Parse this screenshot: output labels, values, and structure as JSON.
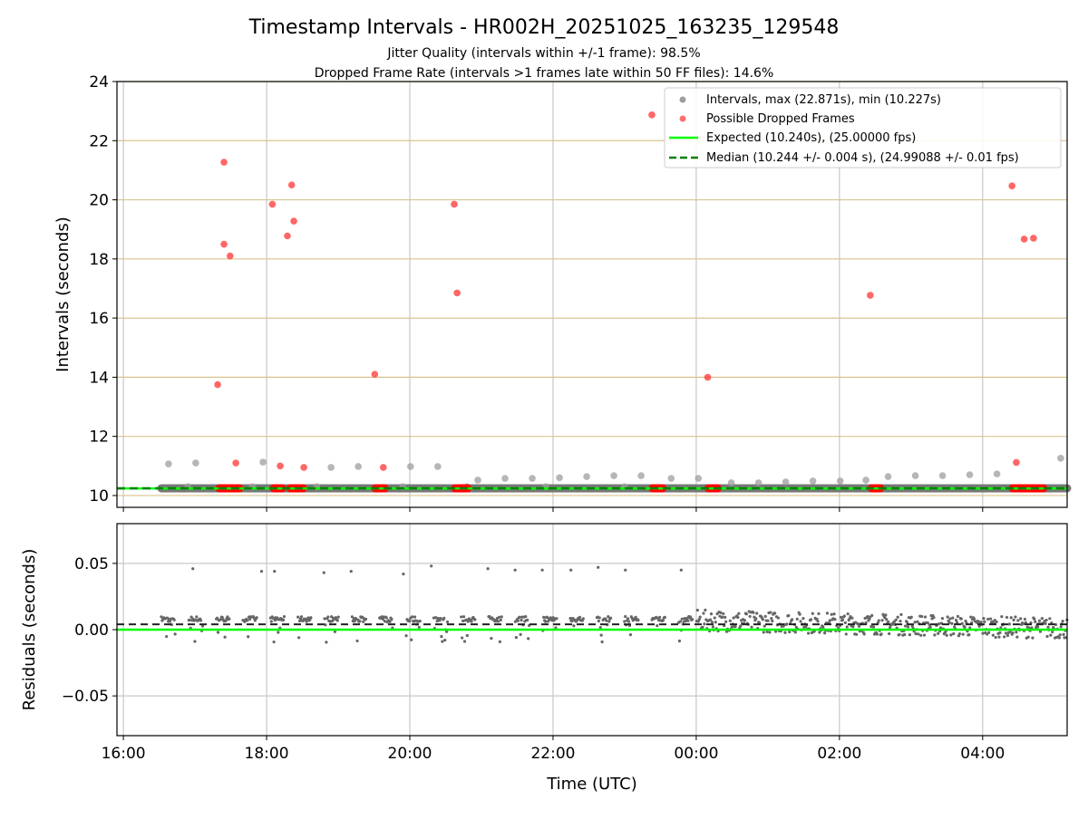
{
  "chart_data": [
    {
      "type": "scatter",
      "title": "Timestamp Intervals - HR002H_20251025_163235_129548",
      "subtitle_lines": [
        "Jitter Quality (intervals within +/-1 frame): 98.5%",
        "Dropped Frame Rate (intervals >1 frames late within 50 FF files): 14.6%"
      ],
      "ylabel": "Intervals (seconds)",
      "ylim": [
        9.6,
        24
      ],
      "yticks": [
        10,
        12,
        14,
        16,
        18,
        20,
        22,
        24
      ],
      "xlim_hours_from_1600": [
        -0.09,
        13.18
      ],
      "xticks_hours_from_1600": [
        0,
        2,
        4,
        6,
        8,
        10,
        12
      ],
      "grid": true,
      "legend_position": "top-right",
      "legend": [
        "Intervals, max (22.871s), min (10.227s)",
        "Possible Dropped Frames",
        "Expected (10.240s), (25.00000 fps)",
        "Median (10.244 +/- 0.004 s), (24.99088 +/- 0.01 fps)"
      ],
      "expected_interval": 10.24,
      "median_interval": 10.244,
      "regular_intervals_band": {
        "x_start": 0.53,
        "x_end": 13.18,
        "value": 10.244
      },
      "intervals": [
        [
          0.63,
          11.07
        ],
        [
          1.01,
          11.1
        ],
        [
          1.95,
          11.13
        ],
        [
          2.9,
          10.95
        ],
        [
          3.28,
          10.98
        ],
        [
          4.01,
          10.98
        ],
        [
          4.39,
          10.98
        ],
        [
          4.95,
          10.52
        ],
        [
          5.33,
          10.58
        ],
        [
          5.71,
          10.58
        ],
        [
          6.09,
          10.6
        ],
        [
          6.47,
          10.64
        ],
        [
          6.85,
          10.67
        ],
        [
          7.23,
          10.67
        ],
        [
          7.65,
          10.58
        ],
        [
          8.03,
          10.58
        ],
        [
          8.49,
          10.43
        ],
        [
          8.87,
          10.43
        ],
        [
          9.25,
          10.46
        ],
        [
          9.63,
          10.49
        ],
        [
          10.01,
          10.49
        ],
        [
          10.37,
          10.52
        ],
        [
          10.68,
          10.64
        ],
        [
          11.06,
          10.67
        ],
        [
          11.44,
          10.67
        ],
        [
          11.82,
          10.7
        ],
        [
          12.2,
          10.73
        ],
        [
          13.09,
          11.26
        ],
        [
          0.9,
          10.3
        ],
        [
          1.8,
          10.3
        ],
        [
          2.7,
          10.3
        ],
        [
          3.9,
          10.3
        ],
        [
          4.8,
          10.3
        ],
        [
          5.9,
          10.3
        ],
        [
          7.0,
          10.3
        ]
      ],
      "dropped_frames": [
        [
          1.316,
          13.75
        ],
        [
          1.405,
          21.27
        ],
        [
          1.405,
          18.5
        ],
        [
          1.49,
          18.1
        ],
        [
          1.57,
          11.1
        ],
        [
          2.08,
          19.85
        ],
        [
          2.19,
          11.0
        ],
        [
          2.29,
          18.78
        ],
        [
          2.35,
          20.5
        ],
        [
          2.38,
          19.28
        ],
        [
          2.52,
          10.95
        ],
        [
          3.51,
          14.1
        ],
        [
          3.63,
          10.95
        ],
        [
          4.62,
          19.85
        ],
        [
          4.66,
          16.85
        ],
        [
          7.38,
          22.871
        ],
        [
          8.16,
          14.0
        ],
        [
          10.43,
          16.77
        ],
        [
          12.41,
          20.47
        ],
        [
          12.47,
          11.12
        ],
        [
          12.58,
          18.67
        ],
        [
          12.71,
          18.7
        ]
      ],
      "dropped_frame_clusters": [
        [
          1.29,
          1.67
        ],
        [
          2.05,
          2.27
        ],
        [
          2.28,
          2.56
        ],
        [
          3.47,
          3.7
        ],
        [
          4.58,
          4.86
        ],
        [
          7.34,
          7.58
        ],
        [
          8.12,
          8.35
        ],
        [
          10.4,
          10.62
        ],
        [
          12.37,
          12.9
        ]
      ]
    },
    {
      "type": "scatter",
      "ylabel": "Residuals (seconds)",
      "xlabel": "Time (UTC)",
      "ylim": [
        -0.08,
        0.08
      ],
      "yticks": [
        0.05,
        0.0,
        -0.05
      ],
      "ytick_labels": [
        "0.05",
        "0.00",
        "−0.05"
      ],
      "xticks_hours_from_1600": [
        0,
        2,
        4,
        6,
        8,
        10,
        12
      ],
      "xtick_labels": [
        "16:00",
        "18:00",
        "20:00",
        "22:00",
        "00:00",
        "02:00",
        "04:00"
      ],
      "expected_residual": 0.0,
      "median_residual": 0.004,
      "outlier_residuals": [
        [
          0.97,
          0.046
        ],
        [
          1.93,
          0.044
        ],
        [
          2.11,
          0.044
        ],
        [
          2.8,
          0.043
        ],
        [
          3.18,
          0.044
        ],
        [
          3.91,
          0.042
        ],
        [
          4.3,
          0.048
        ],
        [
          5.09,
          0.046
        ],
        [
          5.47,
          0.045
        ],
        [
          5.85,
          0.045
        ],
        [
          6.25,
          0.045
        ],
        [
          6.63,
          0.047
        ],
        [
          7.01,
          0.045
        ],
        [
          7.79,
          0.045
        ]
      ],
      "dense_residuals": {
        "x_start": 0.53,
        "x_end": 13.18,
        "noise_change_at": 8.0
      }
    }
  ],
  "colors": {
    "interval": "#9e9e9e",
    "dropped": "#ff3333",
    "expected": "#00ff00",
    "median": "#008000",
    "band": "#777777",
    "hgrid": "#d9c48f",
    "vgrid": "#c8c8c8"
  }
}
